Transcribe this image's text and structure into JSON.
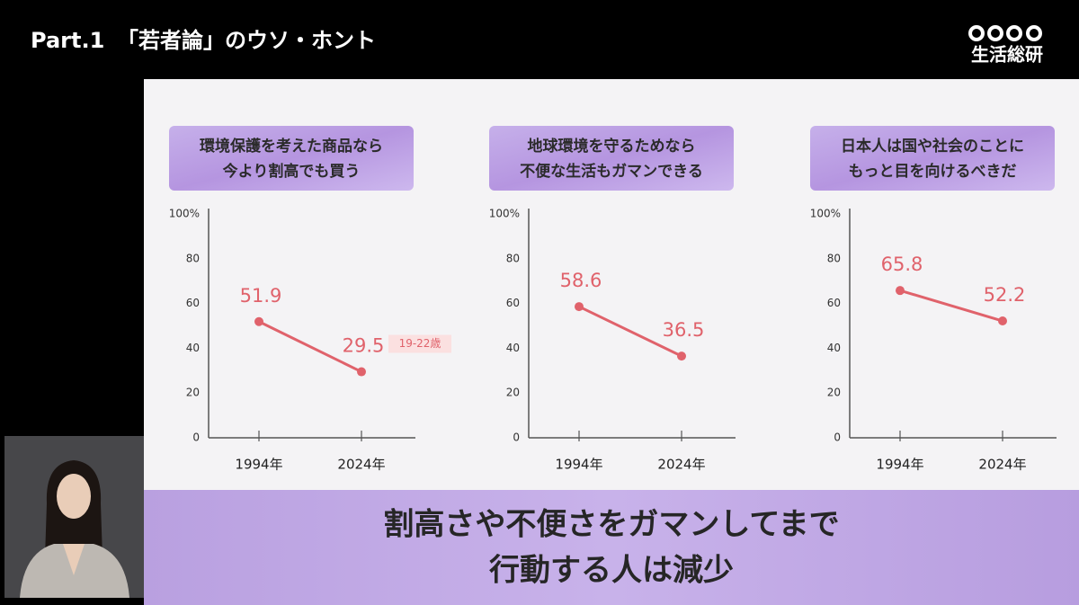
{
  "header": {
    "part": "Part.1",
    "title": "「若者論」のウソ・ホント",
    "logo": "生活総研"
  },
  "caption": [
    "割高さや不便さをガマンしてまで",
    "行動する人は減少"
  ],
  "chart_data": [
    {
      "type": "line",
      "title": [
        "環境保護を考えた商品なら",
        "今より割高でも買う"
      ],
      "categories": [
        "1994年",
        "2024年"
      ],
      "values": [
        51.9,
        29.5
      ],
      "color": "#e0626b",
      "annotation": "19-22歳",
      "ylim": [
        0,
        100
      ],
      "yticks": [
        0,
        20,
        40,
        60,
        80,
        {
          "value": 100,
          "label": "100%"
        }
      ],
      "grid": false
    },
    {
      "type": "line",
      "title": [
        "地球環境を守るためなら",
        "不便な生活もガマンできる"
      ],
      "categories": [
        "1994年",
        "2024年"
      ],
      "values": [
        58.6,
        36.5
      ],
      "color": "#e0626b",
      "ylim": [
        0,
        100
      ],
      "yticks": [
        0,
        20,
        40,
        60,
        80,
        {
          "value": 100,
          "label": "100%"
        }
      ],
      "grid": false
    },
    {
      "type": "line",
      "title": [
        "日本人は国や社会のことに",
        "もっと目を向けるべきだ"
      ],
      "categories": [
        "1994年",
        "2024年"
      ],
      "values": [
        65.8,
        52.2
      ],
      "color": "#e0626b",
      "ylim": [
        0,
        100
      ],
      "yticks": [
        0,
        20,
        40,
        60,
        80,
        {
          "value": 100,
          "label": "100%"
        }
      ],
      "grid": false
    }
  ]
}
